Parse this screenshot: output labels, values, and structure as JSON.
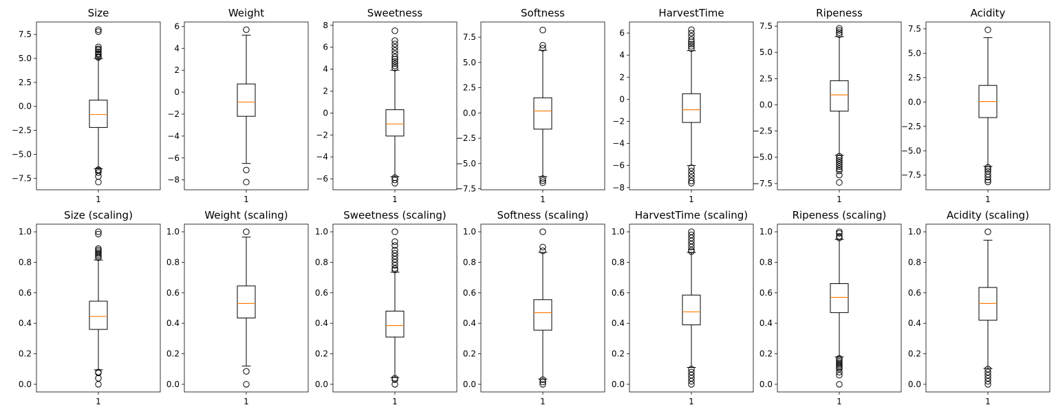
{
  "chart_data": [
    {
      "type": "box",
      "title": "Size",
      "categories": [
        "1"
      ],
      "yticks": [
        -7.5,
        -5.0,
        -2.5,
        0.0,
        2.5,
        5.0,
        7.5
      ],
      "ytick_labels": [
        "−7.5",
        "−5.0",
        "−2.5",
        "0.0",
        "2.5",
        "5.0",
        "7.5"
      ],
      "ylim": [
        -8.7,
        8.8
      ],
      "box": {
        "q1": -2.2,
        "median": -0.85,
        "q3": 0.65,
        "whisker_low": -6.5,
        "whisker_high": 5.0
      },
      "outliers": [
        8.0,
        7.8,
        6.2,
        6.0,
        5.9,
        5.7,
        5.5,
        5.4,
        5.2,
        5.1,
        -6.6,
        -6.7,
        -6.9,
        -7.3,
        -7.9
      ]
    },
    {
      "type": "box",
      "title": "Weight",
      "categories": [
        "1"
      ],
      "yticks": [
        -8,
        -6,
        -4,
        -2,
        0,
        2,
        4,
        6
      ],
      "ytick_labels": [
        "−8",
        "−6",
        "−4",
        "−2",
        "0",
        "2",
        "4",
        "6"
      ],
      "ylim": [
        -8.9,
        6.4
      ],
      "box": {
        "q1": -2.2,
        "median": -0.9,
        "q3": 0.75,
        "whisker_low": -6.5,
        "whisker_high": 5.2
      },
      "outliers": [
        5.7,
        -7.1,
        -8.2
      ]
    },
    {
      "type": "box",
      "title": "Sweetness",
      "categories": [
        "1"
      ],
      "yticks": [
        -6,
        -4,
        -2,
        0,
        2,
        4,
        6,
        8
      ],
      "ytick_labels": [
        "−6",
        "−4",
        "−2",
        "0",
        "2",
        "4",
        "6",
        "8"
      ],
      "ylim": [
        -7.0,
        8.3
      ],
      "box": {
        "q1": -2.1,
        "median": -1.0,
        "q3": 0.3,
        "whisker_low": -5.8,
        "whisker_high": 3.9
      },
      "outliers": [
        7.5,
        6.6,
        6.3,
        6.0,
        5.7,
        5.4,
        5.1,
        4.9,
        4.7,
        4.5,
        4.3,
        4.1,
        -5.9,
        -6.1,
        -6.4
      ]
    },
    {
      "type": "box",
      "title": "Softness",
      "categories": [
        "1"
      ],
      "yticks": [
        -7.5,
        -5.0,
        -2.5,
        0.0,
        2.5,
        5.0,
        7.5
      ],
      "ytick_labels": [
        "−7.5",
        "−5.0",
        "−2.5",
        "0.0",
        "2.5",
        "5.0",
        "7.5"
      ],
      "ylim": [
        -7.6,
        9.0
      ],
      "box": {
        "q1": -1.6,
        "median": 0.2,
        "q3": 1.5,
        "whisker_low": -6.3,
        "whisker_high": 6.2
      },
      "outliers": [
        8.2,
        6.7,
        6.4,
        -6.5,
        -6.7,
        -6.9
      ]
    },
    {
      "type": "box",
      "title": "HarvestTime",
      "categories": [
        "1"
      ],
      "yticks": [
        -8,
        -6,
        -4,
        -2,
        0,
        2,
        4,
        6
      ],
      "ytick_labels": [
        "−8",
        "−6",
        "−4",
        "−2",
        "0",
        "2",
        "4",
        "6"
      ],
      "ylim": [
        -8.2,
        7.0
      ],
      "box": {
        "q1": -2.1,
        "median": -0.95,
        "q3": 0.5,
        "whisker_low": -6.0,
        "whisker_high": 4.4
      },
      "outliers": [
        6.3,
        6.0,
        5.7,
        5.4,
        5.2,
        5.0,
        4.8,
        4.6,
        -6.2,
        -6.5,
        -6.8,
        -7.1,
        -7.4,
        -7.6
      ]
    },
    {
      "type": "box",
      "title": "Ripeness",
      "categories": [
        "1"
      ],
      "yticks": [
        -7.5,
        -5.0,
        -2.5,
        0.0,
        2.5,
        5.0,
        7.5
      ],
      "ytick_labels": [
        "−7.5",
        "−5.0",
        "−2.5",
        "0.0",
        "2.5",
        "5.0",
        "7.5"
      ],
      "ylim": [
        -8.1,
        7.9
      ],
      "box": {
        "q1": -0.6,
        "median": 0.95,
        "q3": 2.3,
        "whisker_low": -4.8,
        "whisker_high": 6.5
      },
      "outliers": [
        7.3,
        7.1,
        6.9,
        6.7,
        -4.9,
        -5.1,
        -5.3,
        -5.5,
        -5.7,
        -5.9,
        -6.1,
        -6.3,
        -6.7,
        -7.4
      ]
    },
    {
      "type": "box",
      "title": "Acidity",
      "categories": [
        "1"
      ],
      "yticks": [
        -7.5,
        -5.0,
        -2.5,
        0.0,
        2.5,
        5.0,
        7.5
      ],
      "ytick_labels": [
        "−7.5",
        "−5.0",
        "−2.5",
        "0.0",
        "2.5",
        "5.0",
        "7.5"
      ],
      "ylim": [
        -9.0,
        8.2
      ],
      "box": {
        "q1": -1.6,
        "median": 0.05,
        "q3": 1.7,
        "whisker_low": -6.6,
        "whisker_high": 6.6
      },
      "outliers": [
        7.4,
        -6.7,
        -6.9,
        -7.1,
        -7.4,
        -7.7,
        -8.0,
        -8.2
      ]
    },
    {
      "type": "box",
      "title": "Size (scaling)",
      "categories": [
        "1"
      ],
      "yticks": [
        0.0,
        0.2,
        0.4,
        0.6,
        0.8,
        1.0
      ],
      "ytick_labels": [
        "0.0",
        "0.2",
        "0.4",
        "0.6",
        "0.8",
        "1.0"
      ],
      "ylim": [
        -0.05,
        1.05
      ],
      "box": {
        "q1": 0.36,
        "median": 0.445,
        "q3": 0.545,
        "whisker_low": 0.095,
        "whisker_high": 0.815
      },
      "outliers": [
        1.0,
        0.985,
        0.89,
        0.88,
        0.87,
        0.86,
        0.85,
        0.84,
        0.83,
        0.08,
        0.075,
        0.04,
        0.0
      ]
    },
    {
      "type": "box",
      "title": "Weight (scaling)",
      "categories": [
        "1"
      ],
      "yticks": [
        0.0,
        0.2,
        0.4,
        0.6,
        0.8,
        1.0
      ],
      "ytick_labels": [
        "0.0",
        "0.2",
        "0.4",
        "0.6",
        "0.8",
        "1.0"
      ],
      "ylim": [
        -0.05,
        1.05
      ],
      "box": {
        "q1": 0.435,
        "median": 0.53,
        "q3": 0.645,
        "whisker_low": 0.12,
        "whisker_high": 0.965
      },
      "outliers": [
        1.0,
        0.085,
        0.0
      ]
    },
    {
      "type": "box",
      "title": "Sweetness (scaling)",
      "categories": [
        "1"
      ],
      "yticks": [
        0.0,
        0.2,
        0.4,
        0.6,
        0.8,
        1.0
      ],
      "ytick_labels": [
        "0.0",
        "0.2",
        "0.4",
        "0.6",
        "0.8",
        "1.0"
      ],
      "ylim": [
        -0.05,
        1.05
      ],
      "box": {
        "q1": 0.31,
        "median": 0.385,
        "q3": 0.48,
        "whisker_low": 0.045,
        "whisker_high": 0.735
      },
      "outliers": [
        1.0,
        0.935,
        0.91,
        0.88,
        0.86,
        0.84,
        0.82,
        0.8,
        0.78,
        0.76,
        0.75,
        0.04,
        0.03,
        0.0
      ]
    },
    {
      "type": "box",
      "title": "Softness (scaling)",
      "categories": [
        "1"
      ],
      "yticks": [
        0.0,
        0.2,
        0.4,
        0.6,
        0.8,
        1.0
      ],
      "ytick_labels": [
        "0.0",
        "0.2",
        "0.4",
        "0.6",
        "0.8",
        "1.0"
      ],
      "ylim": [
        -0.05,
        1.05
      ],
      "box": {
        "q1": 0.355,
        "median": 0.47,
        "q3": 0.555,
        "whisker_low": 0.035,
        "whisker_high": 0.865
      },
      "outliers": [
        1.0,
        0.9,
        0.875,
        0.03,
        0.015,
        0.0
      ]
    },
    {
      "type": "box",
      "title": "HarvestTime (scaling)",
      "categories": [
        "1"
      ],
      "yticks": [
        0.0,
        0.2,
        0.4,
        0.6,
        0.8,
        1.0
      ],
      "ytick_labels": [
        "0.0",
        "0.2",
        "0.4",
        "0.6",
        "0.8",
        "1.0"
      ],
      "ylim": [
        -0.05,
        1.05
      ],
      "box": {
        "q1": 0.39,
        "median": 0.475,
        "q3": 0.585,
        "whisker_low": 0.11,
        "whisker_high": 0.865
      },
      "outliers": [
        1.0,
        0.98,
        0.96,
        0.94,
        0.92,
        0.9,
        0.88,
        0.87,
        0.1,
        0.08,
        0.06,
        0.04,
        0.02,
        0.0
      ]
    },
    {
      "type": "box",
      "title": "Ripeness (scaling)",
      "categories": [
        "1"
      ],
      "yticks": [
        0.0,
        0.2,
        0.4,
        0.6,
        0.8,
        1.0
      ],
      "ytick_labels": [
        "0.0",
        "0.2",
        "0.4",
        "0.6",
        "0.8",
        "1.0"
      ],
      "ylim": [
        -0.05,
        1.05
      ],
      "box": {
        "q1": 0.47,
        "median": 0.57,
        "q3": 0.66,
        "whisker_low": 0.18,
        "whisker_high": 0.95
      },
      "outliers": [
        1.0,
        0.99,
        0.97,
        0.96,
        0.17,
        0.16,
        0.15,
        0.14,
        0.13,
        0.12,
        0.11,
        0.1,
        0.08,
        0.06,
        0.0
      ]
    },
    {
      "type": "box",
      "title": "Acidity (scaling)",
      "categories": [
        "1"
      ],
      "yticks": [
        0.0,
        0.2,
        0.4,
        0.6,
        0.8,
        1.0
      ],
      "ytick_labels": [
        "0.0",
        "0.2",
        "0.4",
        "0.6",
        "0.8",
        "1.0"
      ],
      "ylim": [
        -0.05,
        1.05
      ],
      "box": {
        "q1": 0.42,
        "median": 0.53,
        "q3": 0.635,
        "whisker_low": 0.105,
        "whisker_high": 0.945
      },
      "outliers": [
        1.0,
        0.1,
        0.08,
        0.06,
        0.04,
        0.02,
        0.0
      ]
    }
  ],
  "style": {
    "box_color": "#000000",
    "median_color": "#ff7f0e",
    "flier_color": "#000000"
  }
}
